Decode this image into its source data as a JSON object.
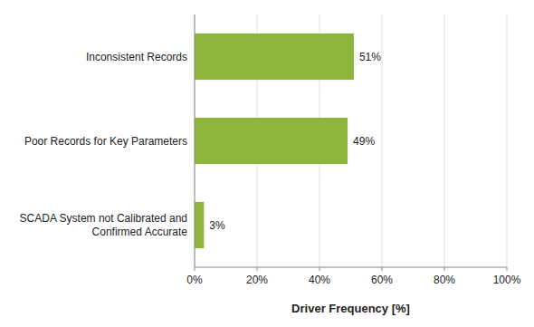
{
  "chart_data": {
    "type": "bar",
    "orientation": "horizontal",
    "categories": [
      "SCADA System not Calibrated and\nConfirmed Accurate",
      "Poor Records for Key Parameters",
      "Inconsistent Records"
    ],
    "values": [
      3,
      49,
      51
    ],
    "value_labels": [
      "3%",
      "49%",
      "51%"
    ],
    "data_labels": true,
    "color": "#8db53c",
    "x_label": "Driver Frequency [%]",
    "xlim": [
      0,
      100
    ],
    "xticks": [
      {
        "value": 0,
        "label": "0%"
      },
      {
        "value": 20,
        "label": "20%"
      },
      {
        "value": 40,
        "label": "40%"
      },
      {
        "value": 60,
        "label": "60%"
      },
      {
        "value": 80,
        "label": "80%"
      },
      {
        "value": 100,
        "label": "100%"
      }
    ],
    "grid": true
  }
}
